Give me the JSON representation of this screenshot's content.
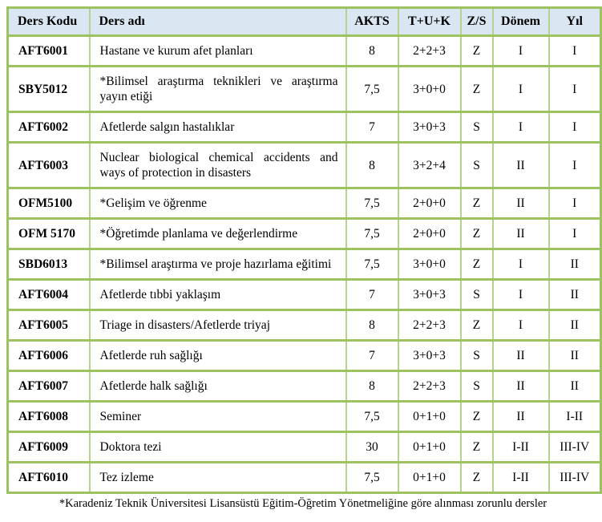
{
  "table": {
    "columns": [
      {
        "key": "code",
        "label": "Ders Kodu"
      },
      {
        "key": "name",
        "label": "Ders adı"
      },
      {
        "key": "akts",
        "label": "AKTS"
      },
      {
        "key": "tuk",
        "label": "T+U+K"
      },
      {
        "key": "zs",
        "label": "Z/S"
      },
      {
        "key": "donem",
        "label": "Dönem"
      },
      {
        "key": "yil",
        "label": "Yıl"
      }
    ],
    "rows": [
      {
        "code": "AFT6001",
        "name": "Hastane ve kurum afet planları",
        "akts": "8",
        "tuk": "2+2+3",
        "zs": "Z",
        "donem": "I",
        "yil": "I"
      },
      {
        "code": "SBY5012",
        "name": "*Bilimsel araştırma teknikleri ve araştırma yayın etiği",
        "akts": "7,5",
        "tuk": "3+0+0",
        "zs": "Z",
        "donem": "I",
        "yil": "I"
      },
      {
        "code": "AFT6002",
        "name": "Afetlerde salgın hastalıklar",
        "akts": "7",
        "tuk": "3+0+3",
        "zs": "S",
        "donem": "I",
        "yil": "I"
      },
      {
        "code": "AFT6003",
        "name": "Nuclear biological chemical accidents and ways of protection in disasters",
        "akts": "8",
        "tuk": "3+2+4",
        "zs": "S",
        "donem": "II",
        "yil": "I"
      },
      {
        "code": "OFM5100",
        "name": "*Gelişim ve öğrenme",
        "akts": "7,5",
        "tuk": "2+0+0",
        "zs": "Z",
        "donem": "II",
        "yil": "I"
      },
      {
        "code": "OFM 5170",
        "name": "*Öğretimde planlama ve değerlendirme",
        "akts": "7,5",
        "tuk": "2+0+0",
        "zs": "Z",
        "donem": "II",
        "yil": "I"
      },
      {
        "code": "SBD6013",
        "name": "*Bilimsel araştırma ve proje hazırlama eğitimi",
        "akts": "7,5",
        "tuk": "3+0+0",
        "zs": "Z",
        "donem": "I",
        "yil": "II"
      },
      {
        "code": "AFT6004",
        "name": "Afetlerde tıbbi yaklaşım",
        "akts": "7",
        "tuk": "3+0+3",
        "zs": "S",
        "donem": "I",
        "yil": "II"
      },
      {
        "code": "AFT6005",
        "name": "Triage in disasters/Afetlerde triyaj",
        "akts": "8",
        "tuk": "2+2+3",
        "zs": "Z",
        "donem": "I",
        "yil": "II"
      },
      {
        "code": "AFT6006",
        "name": "Afetlerde ruh sağlığı",
        "akts": "7",
        "tuk": "3+0+3",
        "zs": "S",
        "donem": "II",
        "yil": "II"
      },
      {
        "code": "AFT6007",
        "name": "Afetlerde halk sağlığı",
        "akts": "8",
        "tuk": "2+2+3",
        "zs": "S",
        "donem": "II",
        "yil": "II"
      },
      {
        "code": "AFT6008",
        "name": "Seminer",
        "akts": "7,5",
        "tuk": "0+1+0",
        "zs": "Z",
        "donem": "II",
        "yil": "I-II"
      },
      {
        "code": "AFT6009",
        "name": "Doktora tezi",
        "akts": "30",
        "tuk": "0+1+0",
        "zs": "Z",
        "donem": "I-II",
        "yil": "III-IV"
      },
      {
        "code": "AFT6010",
        "name": "Tez izleme",
        "akts": "7,5",
        "tuk": "0+1+0",
        "zs": "Z",
        "donem": "I-II",
        "yil": "III-IV"
      }
    ],
    "footnote": "*Karadeniz Teknik Üniversitesi Lisansüstü Eğitim-Öğretim Yönetmeliğine göre alınması zorunlu dersler"
  },
  "colors": {
    "border_green": "#9CC360",
    "border_green_light": "#B5D28F",
    "header_bg": "#DAE7F2",
    "row_bg": "#FFFFFF",
    "text": "#000000"
  }
}
